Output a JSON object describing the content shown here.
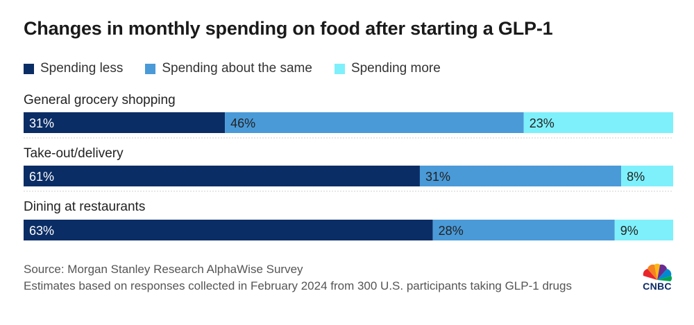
{
  "title": "Changes in monthly spending on food after starting a GLP-1",
  "colors": {
    "spending_less": "#0b2d65",
    "spending_same": "#4a9ad8",
    "spending_more": "#7ef0fb",
    "label_light": "#ffffff",
    "label_dark": "#222222"
  },
  "chart_data": {
    "type": "bar",
    "orientation": "horizontal",
    "stacked": true,
    "normalized_to": 100,
    "title": "Changes in monthly spending on food after starting a GLP-1",
    "categories": [
      "General grocery shopping",
      "Take-out/delivery",
      "Dining at restaurants"
    ],
    "series": [
      {
        "name": "Spending less",
        "values": [
          31,
          61,
          63
        ],
        "labels": [
          "31%",
          "61%",
          "63%"
        ],
        "color": "#0b2d65"
      },
      {
        "name": "Spending about the same",
        "values": [
          46,
          31,
          28
        ],
        "labels": [
          "46%",
          "31%",
          "28%"
        ],
        "color": "#4a9ad8"
      },
      {
        "name": "Spending more",
        "values": [
          23,
          8,
          9
        ],
        "labels": [
          "23%",
          "8%",
          "9%"
        ],
        "color": "#7ef0fb"
      }
    ],
    "legend_position": "top-left"
  },
  "legend": [
    {
      "label": "Spending less"
    },
    {
      "label": "Spending about the same"
    },
    {
      "label": "Spending more"
    }
  ],
  "footer": {
    "source": "Source: Morgan Stanley Research AlphaWise Survey",
    "note": "Estimates based on responses collected in February 2024 from 300 U.S. participants taking GLP-1 drugs"
  },
  "logo": {
    "text": "CNBC",
    "icon": "cnbc-peacock-icon"
  }
}
